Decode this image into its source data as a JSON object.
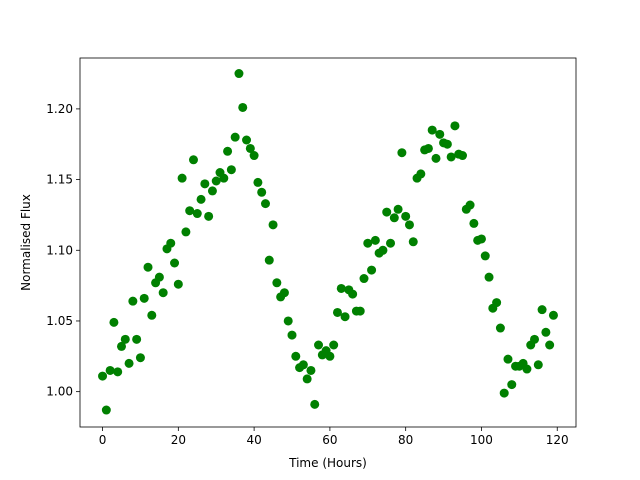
{
  "chart_data": {
    "type": "scatter",
    "x_label": "Time (Hours)",
    "y_label": "Normalised Flux",
    "color": "#008000",
    "x": [
      0,
      1,
      2,
      3,
      4,
      5,
      6,
      7,
      8,
      9,
      10,
      11,
      12,
      13,
      14,
      15,
      16,
      17,
      18,
      19,
      20,
      21,
      22,
      23,
      24,
      25,
      26,
      27,
      28,
      29,
      30,
      31,
      32,
      33,
      34,
      35,
      36,
      37,
      38,
      39,
      40,
      41,
      42,
      43,
      44,
      45,
      46,
      47,
      48,
      49,
      50,
      51,
      52,
      53,
      54,
      55,
      56,
      57,
      58,
      59,
      60,
      61,
      62,
      63,
      64,
      65,
      66,
      67,
      68,
      69,
      70,
      71,
      72,
      73,
      74,
      75,
      76,
      77,
      78,
      79,
      80,
      81,
      82,
      83,
      84,
      85,
      86,
      87,
      88,
      89,
      90,
      91,
      92,
      93,
      94,
      95,
      96,
      97,
      98,
      99,
      100,
      101,
      102,
      103,
      104,
      105,
      106,
      107,
      108,
      109,
      110,
      111,
      112,
      113,
      114,
      115,
      116,
      117,
      118,
      119
    ],
    "values": [
      1.011,
      0.987,
      1.015,
      1.049,
      1.014,
      1.032,
      1.037,
      1.02,
      1.064,
      1.037,
      1.024,
      1.066,
      1.088,
      1.054,
      1.077,
      1.081,
      1.07,
      1.101,
      1.105,
      1.091,
      1.076,
      1.151,
      1.113,
      1.128,
      1.164,
      1.126,
      1.136,
      1.147,
      1.124,
      1.142,
      1.149,
      1.155,
      1.151,
      1.17,
      1.157,
      1.18,
      1.225,
      1.201,
      1.178,
      1.172,
      1.167,
      1.148,
      1.141,
      1.133,
      1.093,
      1.118,
      1.077,
      1.067,
      1.07,
      1.05,
      1.04,
      1.025,
      1.017,
      1.019,
      1.009,
      1.015,
      0.991,
      1.033,
      1.026,
      1.029,
      1.025,
      1.033,
      1.056,
      1.073,
      1.053,
      1.072,
      1.069,
      1.057,
      1.057,
      1.08,
      1.105,
      1.086,
      1.107,
      1.098,
      1.1,
      1.127,
      1.105,
      1.123,
      1.129,
      1.169,
      1.124,
      1.118,
      1.106,
      1.151,
      1.154,
      1.171,
      1.172,
      1.185,
      1.165,
      1.182,
      1.176,
      1.175,
      1.166,
      1.188,
      1.168,
      1.167,
      1.129,
      1.132,
      1.119,
      1.107,
      1.108,
      1.096,
      1.081,
      1.059,
      1.063,
      1.045,
      0.999,
      1.023,
      1.005,
      1.018,
      1.018,
      1.02,
      1.016,
      1.033,
      1.037,
      1.019,
      1.058,
      1.042,
      1.033,
      1.054
    ],
    "xlim": [
      -5.95,
      124.95
    ],
    "ylim": [
      0.975,
      1.236
    ],
    "xticks": [
      0,
      20,
      40,
      60,
      80,
      100,
      120
    ],
    "yticks": [
      {
        "value": 1.0,
        "label": "1.00"
      },
      {
        "value": 1.05,
        "label": "1.05"
      },
      {
        "value": 1.1,
        "label": "1.10"
      },
      {
        "value": 1.15,
        "label": "1.15"
      },
      {
        "value": 1.2,
        "label": "1.20"
      }
    ]
  }
}
